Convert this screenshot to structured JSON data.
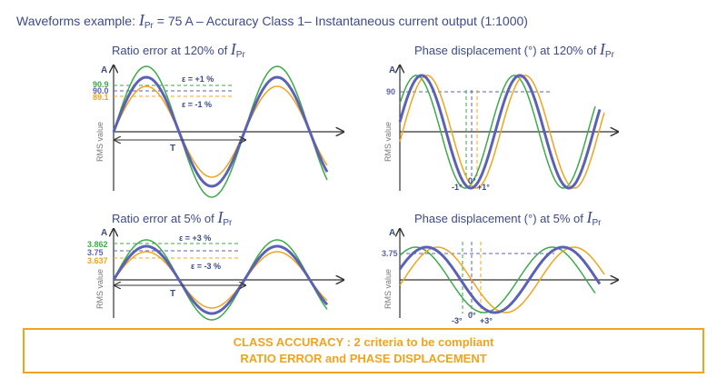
{
  "header": {
    "prefix": "Waveforms example: ",
    "ipr_symbol": "I",
    "ipr_subscript": "Pr",
    "suffix": " = 75 A – Accuracy Class 1– Instantaneous current output (1:1000)"
  },
  "panels": {
    "ratio_120": {
      "title": "Ratio error at 120% of ",
      "y_unit": "A",
      "y_axis_label": "RMS value",
      "levels": [
        "90.9",
        "90.0",
        "89.1"
      ],
      "eps_plus": "ε = +1 %",
      "eps_minus": "ε = -1 %",
      "period": "T"
    },
    "phase_120": {
      "title": "Phase displacement (°) at 120% of ",
      "y_unit": "A",
      "y_axis_label": "RMS value",
      "level": "90",
      "phase_labels": [
        "-1°",
        "0°",
        "+1°"
      ]
    },
    "ratio_5": {
      "title": "Ratio error at 5% of ",
      "y_unit": "A",
      "y_axis_label": "RMS value",
      "levels": [
        "3.862",
        "3.75",
        "3.637"
      ],
      "eps_plus": "ε = +3 %",
      "eps_minus": "ε = -3 %",
      "period": "T"
    },
    "phase_5": {
      "title": "Phase displacement (°) at 5% of ",
      "y_unit": "A",
      "y_axis_label": "RMS value",
      "level": "3.75",
      "phase_labels": [
        "-3°",
        "0°",
        "+3°"
      ]
    }
  },
  "colors": {
    "green": "#3daa4a",
    "blue": "#5b62b5",
    "orange": "#f0a41e",
    "axis": "#333333",
    "text": "#3d4a8a"
  },
  "class_box": {
    "line1": "CLASS ACCURACY : 2 criteria to be compliant",
    "line2": "RATIO ERROR and PHASE DISPLACEMENT"
  }
}
